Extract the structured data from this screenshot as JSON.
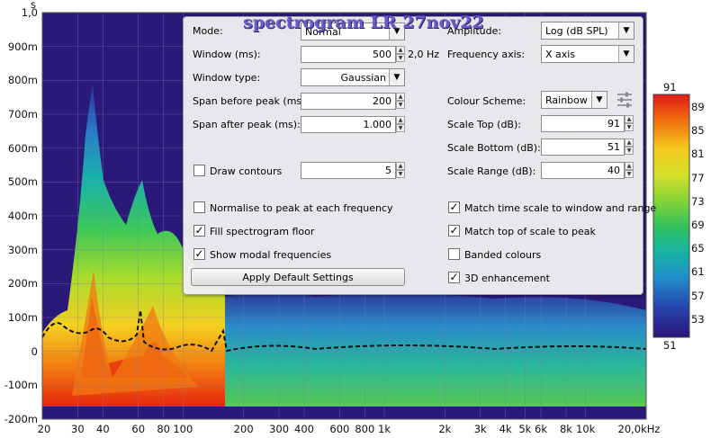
{
  "title": "spectrogram LR 27nov22",
  "y_axis": {
    "unit": "s",
    "ticks": [
      "1,0",
      "900m",
      "800m",
      "700m",
      "600m",
      "500m",
      "400m",
      "300m",
      "200m",
      "100m",
      "0",
      "-100m",
      "-200m"
    ]
  },
  "x_axis": {
    "ticks": [
      "20",
      "30",
      "40",
      "60",
      "80",
      "100",
      "200",
      "300",
      "400",
      "600",
      "800",
      "1k",
      "2k",
      "3k",
      "4k",
      "5k",
      "6k",
      "8k",
      "10k",
      "20,0kHz"
    ],
    "tick_values": [
      20,
      30,
      40,
      60,
      80,
      100,
      200,
      300,
      400,
      600,
      800,
      1000,
      2000,
      3000,
      4000,
      5000,
      6000,
      8000,
      10000,
      20000
    ]
  },
  "panel": {
    "mode_label": "Mode:",
    "mode_value": "Normal",
    "window_label": "Window (ms):",
    "window_value": "500",
    "window_res": "2,0 Hz",
    "window_type_label": "Window type:",
    "window_type_value": "Gaussian",
    "span_before_label": "Span before peak (ms):",
    "span_before_value": "200",
    "span_after_label": "Span after peak (ms):",
    "span_after_value": "1.000",
    "draw_contours_label": "Draw contours",
    "contours_value": "5",
    "normalise_label": "Normalise to peak at each frequency",
    "fill_floor_label": "Fill spectrogram floor",
    "show_modal_label": "Show modal frequencies",
    "apply_label": "Apply Default Settings",
    "amplitude_label": "Amplitude:",
    "amplitude_value": "Log (dB SPL)",
    "freq_axis_label": "Frequency axis:",
    "freq_axis_value": "X axis",
    "colour_scheme_label": "Colour Scheme:",
    "colour_scheme_value": "Rainbow",
    "scale_top_label": "Scale Top (dB):",
    "scale_top_value": "91",
    "scale_bottom_label": "Scale Bottom (dB):",
    "scale_bottom_value": "51",
    "scale_range_label": "Scale Range (dB):",
    "scale_range_value": "40",
    "match_time_label": "Match time scale to window and range",
    "match_top_label": "Match top of scale to peak",
    "banded_label": "Banded colours",
    "enhance_label": "3D enhancement",
    "checks": {
      "draw_contours": false,
      "normalise": false,
      "fill_floor": true,
      "show_modal": true,
      "match_time": true,
      "match_top": true,
      "banded": false,
      "enhance": true
    }
  },
  "colorbar": {
    "top_label": "91",
    "bottom_label": "51",
    "ticks": [
      "89",
      "85",
      "81",
      "77",
      "73",
      "69",
      "65",
      "61",
      "57",
      "53"
    ]
  }
}
